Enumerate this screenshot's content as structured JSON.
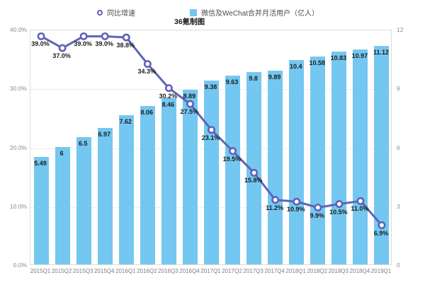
{
  "legend": {
    "growth_label": "同比增速",
    "mau_label": "微信及WeChat合并月活用户（亿人）"
  },
  "caption": "36氪制图",
  "colors": {
    "bar": "#74c7f0",
    "line": "#5e63b8",
    "marker_fill": "#ffffff",
    "data_label": "#1c1c1c",
    "axis_label": "#8c8c8c",
    "gridline": "#ededed",
    "plot_border": "#dcdcdc"
  },
  "chart_data": {
    "type": "bar+line",
    "title": "",
    "categories": [
      "2015Q1",
      "2015Q2",
      "2015Q3",
      "2015Q4",
      "2016Q1",
      "2016Q2",
      "2016Q3",
      "2016Q4",
      "2017Q1",
      "2017Q2",
      "2017Q3",
      "2017Q4",
      "2018Q1",
      "2018Q2",
      "2018Q3",
      "2018Q4",
      "2019Q1"
    ],
    "series": [
      {
        "name": "微信及WeChat合并月活用户（亿人）",
        "type": "bar",
        "axis": "right",
        "values": [
          5.49,
          6,
          6.5,
          6.97,
          7.62,
          8.06,
          8.46,
          8.89,
          9.38,
          9.63,
          9.8,
          9.89,
          10.4,
          10.58,
          10.83,
          10.97,
          11.12
        ],
        "labels": [
          "5.49",
          "6",
          "6.5",
          "6.97",
          "7.62",
          "8.06",
          "8.46",
          "8.89",
          "9.38",
          "9.63",
          "9.8",
          "9.89",
          "10.4",
          "10.58",
          "10.83",
          "10.97",
          "11.12"
        ]
      },
      {
        "name": "同比增速",
        "type": "line",
        "axis": "left",
        "values": [
          39.0,
          37.0,
          39.0,
          39.0,
          38.8,
          34.3,
          30.2,
          27.5,
          23.1,
          19.5,
          15.8,
          11.2,
          10.9,
          9.9,
          10.5,
          11.0,
          6.9
        ],
        "labels": [
          "39.0%",
          "37.0%",
          "39.0%",
          "39.0%",
          "38.8%",
          "34.3%",
          "30.2%",
          "27.5%",
          "23.1%",
          "19.5%",
          "15.8%",
          "11.2%",
          "10.9%",
          "9.9%",
          "10.5%",
          "11.0%",
          "6.9%"
        ]
      }
    ],
    "left_axis": {
      "min": 0,
      "max": 40,
      "ticks": [
        "0.0%",
        "10.0%",
        "20.0%",
        "30.0%",
        "40.0%"
      ]
    },
    "right_axis": {
      "min": 0,
      "max": 12,
      "ticks": [
        "0",
        "3",
        "6",
        "9",
        "12"
      ]
    },
    "grid": true,
    "legend_position": "top"
  }
}
